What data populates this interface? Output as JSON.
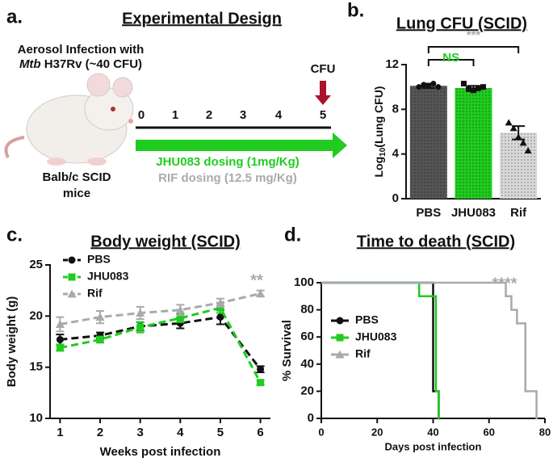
{
  "design": {
    "panel": "a.",
    "title": "Experimental Design",
    "infection_line1": "Aerosol Infection with",
    "infection_italic": "Mtb",
    "infection_rest": " H37Rv (~40 CFU)",
    "timeline": [
      "0",
      "1",
      "2",
      "3",
      "4",
      "5"
    ],
    "readout": "CFU",
    "dosing_jhu": "JHU083 dosing (1mg/Kg)",
    "dosing_rif": "RIF dosing (12.5 mg/Kg)",
    "mouse_line1": "Balb/c SCID",
    "mouse_line2": "mice"
  },
  "chart_data": [
    {
      "type": "bar",
      "panel": "b.",
      "title": "Lung CFU (SCID)",
      "ylabel": [
        "Log",
        "10",
        "(Lung CFU)"
      ],
      "categories": [
        "PBS",
        "JHU083",
        "Rif"
      ],
      "values": [
        10.1,
        9.9,
        5.9
      ],
      "errors": [
        0.2,
        0.2,
        0.6
      ],
      "points": [
        [
          10.0,
          10.2,
          10.1,
          10.3,
          10.0
        ],
        [
          10.3,
          9.8,
          9.7,
          9.9,
          10.0
        ],
        [
          6.8,
          6.3,
          5.5,
          5.0,
          4.3
        ]
      ],
      "colors": [
        "#555555",
        "#1fcc1f",
        "#d9d9d9"
      ],
      "ylim": [
        0,
        12
      ],
      "yticks": [
        0,
        4,
        8,
        12
      ],
      "annotations": [
        {
          "text": "NS",
          "color": "#1fcc1f"
        },
        {
          "text": "***",
          "color": "#aaaaaa"
        }
      ]
    },
    {
      "type": "line",
      "panel": "c.",
      "title": "Body weight (SCID)",
      "xlabel": "Weeks post infection",
      "ylabel": "Body weight (g)",
      "x": [
        1,
        2,
        3,
        4,
        5,
        6
      ],
      "xlim": [
        0.75,
        6.25
      ],
      "xticks": [
        1,
        2,
        3,
        4,
        5,
        6
      ],
      "ylim": [
        10,
        25
      ],
      "yticks": [
        10,
        15,
        20,
        25
      ],
      "dashed": true,
      "series": [
        {
          "name": "PBS",
          "color": "#111111",
          "marker": "circle",
          "values": [
            17.7,
            18.1,
            19.0,
            19.3,
            19.9,
            14.8
          ],
          "errors": [
            0.5,
            0.3,
            0.4,
            0.5,
            0.7,
            0.3
          ]
        },
        {
          "name": "JHU083",
          "color": "#1fcc1f",
          "marker": "square",
          "values": [
            16.9,
            17.7,
            18.9,
            19.8,
            20.8,
            13.5
          ],
          "errors": [
            0.3,
            0.3,
            0.5,
            0.4,
            0.5,
            0.2
          ]
        },
        {
          "name": "Rif",
          "color": "#aaaaaa",
          "marker": "triangle",
          "values": [
            19.2,
            19.9,
            20.3,
            20.6,
            21.3,
            22.2
          ],
          "errors": [
            0.7,
            0.6,
            0.6,
            0.5,
            0.4,
            0.3
          ]
        }
      ],
      "annotations": [
        {
          "text": "**",
          "color": "#aaaaaa"
        }
      ]
    },
    {
      "type": "line",
      "drawstyle": "steps-post",
      "panel": "d.",
      "title": "Time to death (SCID)",
      "xlabel": "Days post infection",
      "ylabel": "% Survival",
      "xlim": [
        0,
        80
      ],
      "xticks": [
        0,
        20,
        40,
        60,
        80
      ],
      "ylim": [
        0,
        100
      ],
      "yticks": [
        0,
        20,
        40,
        60,
        80,
        100
      ],
      "series": [
        {
          "name": "PBS",
          "color": "#111111",
          "marker": "circle",
          "x": [
            0,
            40,
            42
          ],
          "values": [
            100,
            20,
            0
          ]
        },
        {
          "name": "JHU083",
          "color": "#1fcc1f",
          "marker": "square",
          "x": [
            0,
            35,
            41,
            42
          ],
          "values": [
            100,
            90,
            20,
            0
          ]
        },
        {
          "name": "Rif",
          "color": "#aaaaaa",
          "marker": "triangle",
          "x": [
            0,
            66,
            68,
            70,
            73,
            77
          ],
          "values": [
            100,
            90,
            80,
            70,
            20,
            0
          ]
        }
      ],
      "annotations": [
        {
          "text": "****",
          "color": "#aaaaaa"
        }
      ]
    }
  ]
}
